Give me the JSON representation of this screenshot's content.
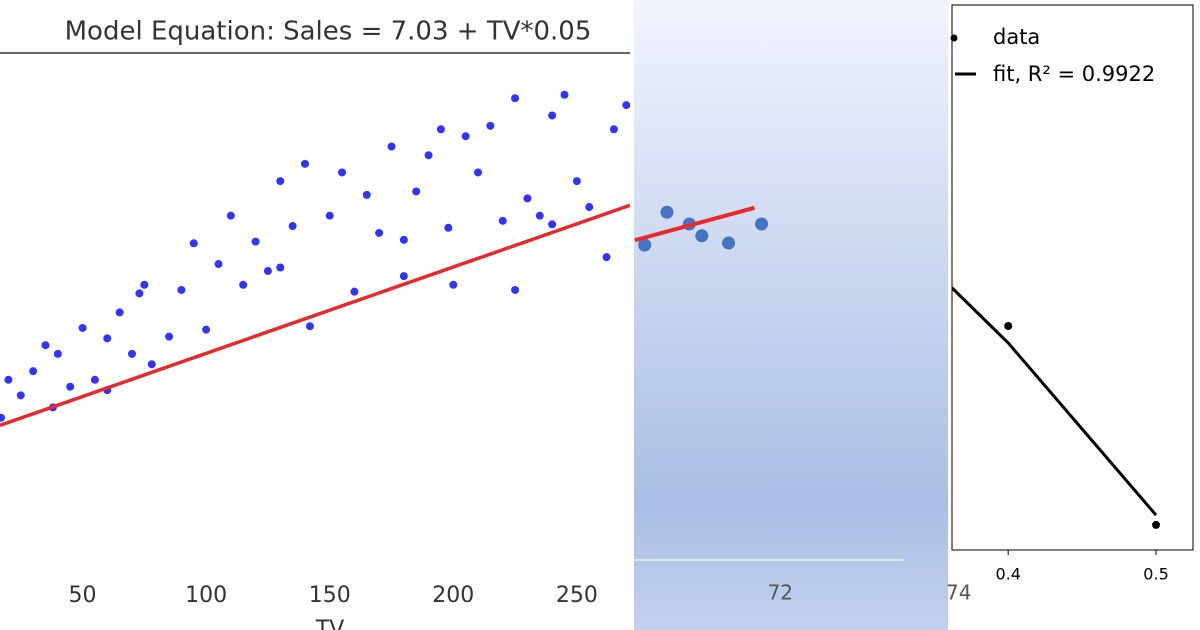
{
  "chart_data": [
    {
      "type": "scatter",
      "title": "Model Equation: Sales = 7.03 + TV*0.05",
      "x_label": "TV",
      "xlim": [
        16.6,
        271.5
      ],
      "ylim": [
        -0.8,
        29.3
      ],
      "xticks": [
        50,
        100,
        150,
        200,
        250
      ],
      "series": [
        {
          "kind": "points",
          "color": "#0000ff",
          "x": [
            17,
            20,
            25,
            30,
            35,
            38,
            40,
            45,
            50,
            55,
            60,
            65,
            70,
            73,
            75,
            78,
            85,
            90,
            95,
            100,
            105,
            110,
            115,
            120,
            125,
            130,
            135,
            140,
            142,
            150,
            155,
            160,
            165,
            170,
            175,
            180,
            185,
            190,
            195,
            198,
            200,
            205,
            210,
            215,
            220,
            225,
            230,
            235,
            240,
            245,
            250,
            255,
            262,
            265,
            270,
            225,
            240,
            180,
            130,
            60
          ],
          "values": [
            8.3,
            10.5,
            9.6,
            11,
            12.5,
            8.9,
            12,
            10.1,
            13.5,
            10.5,
            12.9,
            14.4,
            12,
            15.5,
            16,
            11.4,
            13,
            15.7,
            18.4,
            13.4,
            17.2,
            20,
            16,
            18.5,
            16.8,
            22,
            19.4,
            23,
            13.6,
            20,
            22.5,
            15.6,
            21.2,
            19,
            24,
            16.5,
            21.4,
            23.5,
            25,
            19.3,
            16,
            24.6,
            22.5,
            25.2,
            19.7,
            26.8,
            21,
            20,
            25.8,
            27,
            22,
            20.5,
            17.6,
            25,
            26.4,
            15.7,
            19.5,
            18.6,
            17,
            9.9
          ]
        },
        {
          "kind": "line",
          "color": "#e8282a",
          "x": [
            16.6,
            271.5
          ],
          "values": [
            7.86,
            20.6
          ]
        }
      ]
    },
    {
      "type": "scatter",
      "xlim": [
        70.36,
        73.88
      ],
      "ylim": [
        0,
        1
      ],
      "xticks": [
        72,
        74
      ],
      "series": [
        {
          "kind": "points",
          "color": "#4472c4",
          "x": [
            70.48,
            70.73,
            70.98,
            71.12,
            71.42,
            71.79
          ],
          "values": [
            0.5625,
            0.621,
            0.6,
            0.579,
            0.566,
            0.6
          ]
        },
        {
          "kind": "line",
          "color": "#e8282a",
          "x": [
            70.37,
            71.71
          ],
          "values": [
            0.571,
            0.629
          ]
        }
      ]
    },
    {
      "type": "scatter",
      "xlim": [
        0.362,
        0.525
      ],
      "ylim": [
        0,
        1
      ],
      "xticks": [
        0.4,
        0.5
      ],
      "series": [
        {
          "kind": "points",
          "name": "data",
          "color": "#000000",
          "x": [
            0.4,
            0.5
          ],
          "values": [
            0.411,
            0.046
          ]
        },
        {
          "kind": "line",
          "name": "fit, R² = 0.9922",
          "color": "#000000",
          "x": [
            0.362,
            0.4,
            0.5
          ],
          "values": [
            0.481,
            0.38,
            0.064
          ]
        }
      ]
    }
  ]
}
